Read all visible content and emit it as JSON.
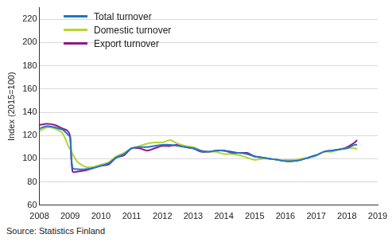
{
  "chart_data": {
    "type": "line",
    "y_label": "Index (2015=100)",
    "annotations": [
      "Source: Statistics Finland"
    ],
    "x": [
      2008.0,
      2008.25,
      2008.5,
      2008.75,
      2008.92,
      2009.0,
      2009.08,
      2009.25,
      2009.5,
      2009.75,
      2010.0,
      2010.25,
      2010.5,
      2010.75,
      2011.0,
      2011.25,
      2011.5,
      2011.75,
      2012.0,
      2012.25,
      2012.5,
      2012.75,
      2013.0,
      2013.25,
      2013.5,
      2013.75,
      2014.0,
      2014.25,
      2014.5,
      2014.75,
      2015.0,
      2015.25,
      2015.5,
      2015.75,
      2016.0,
      2016.25,
      2016.5,
      2016.75,
      2017.0,
      2017.25,
      2017.5,
      2017.75,
      2018.0,
      2018.25,
      2018.33
    ],
    "series": [
      {
        "name": "Total turnover",
        "color": "#1f77c4",
        "values": [
          126,
          128,
          127,
          125,
          121,
          118,
          92,
          91,
          91,
          92,
          94,
          96,
          101,
          104,
          109,
          110,
          110,
          111,
          112,
          112,
          111,
          110,
          109,
          107,
          106,
          107,
          107,
          105,
          105,
          104,
          102,
          101,
          100,
          99,
          98,
          98,
          99,
          101,
          103,
          106,
          107,
          108,
          109,
          112,
          112
        ]
      },
      {
        "name": "Domestic turnover",
        "color": "#b6d432",
        "values": [
          124,
          127,
          126,
          122,
          112,
          108,
          104,
          97,
          93,
          93,
          95,
          97,
          102,
          105,
          109,
          111,
          113,
          114,
          114,
          116,
          113,
          111,
          110,
          107,
          106,
          106,
          104,
          104,
          103,
          101,
          99,
          100,
          100,
          99,
          99,
          99,
          100,
          101,
          103,
          106,
          106,
          108,
          109,
          109,
          108
        ]
      },
      {
        "name": "Export turnover",
        "color": "#8c1a8a",
        "values": [
          129,
          130,
          129,
          126,
          124,
          119,
          89,
          89,
          90,
          92,
          94,
          95,
          101,
          103,
          109,
          109,
          107,
          109,
          111,
          111,
          112,
          110,
          109,
          106,
          106,
          107,
          107,
          106,
          105,
          105,
          102,
          101,
          100,
          99,
          98,
          98,
          99,
          101,
          103,
          106,
          107,
          108,
          110,
          114,
          116
        ]
      }
    ],
    "xlim": [
      2008,
      2019
    ],
    "xticks": [
      2008,
      2009,
      2010,
      2011,
      2012,
      2013,
      2014,
      2015,
      2016,
      2017,
      2018,
      2019
    ],
    "ylim": [
      60,
      230
    ],
    "yticks": [
      60,
      80,
      100,
      120,
      140,
      160,
      180,
      200,
      220
    ],
    "grid": true,
    "legend": "upper left"
  }
}
